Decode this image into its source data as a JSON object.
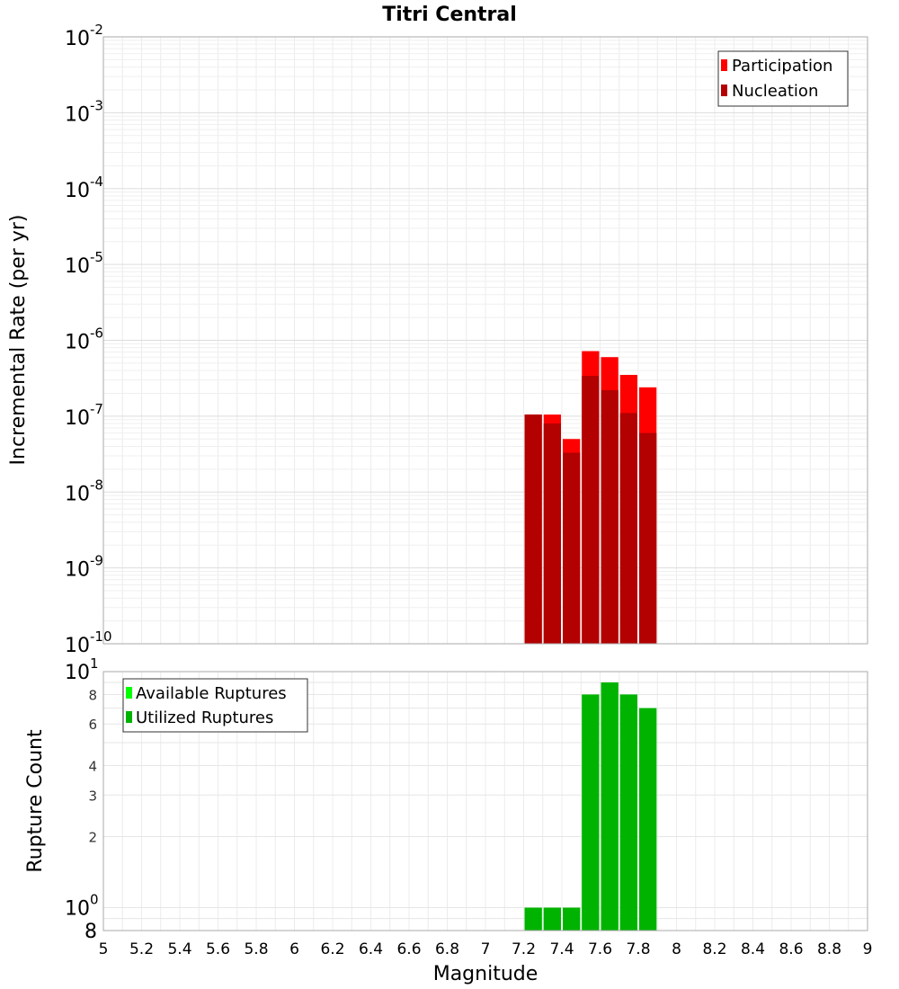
{
  "chart_data": [
    {
      "type": "bar",
      "title": "Titri Central",
      "xlabel": "",
      "ylabel": "Incremental Rate (per yr)",
      "yscale": "log",
      "ylim": [
        1e-10,
        0.01
      ],
      "xlim": [
        5,
        9
      ],
      "bin_width": 0.1,
      "x": [
        7.25,
        7.35,
        7.45,
        7.55,
        7.65,
        7.75,
        7.85
      ],
      "series": [
        {
          "name": "Participation",
          "color": "#ff0000",
          "values": [
            1.05e-07,
            1.05e-07,
            5e-08,
            7.2e-07,
            6e-07,
            3.5e-07,
            2.4e-07
          ]
        },
        {
          "name": "Nucleation",
          "color": "#b30000",
          "values": [
            1.05e-07,
            8e-08,
            3.3e-08,
            3.4e-07,
            2.2e-07,
            1.1e-07,
            6e-08
          ]
        }
      ],
      "legend": "top-right",
      "grid": true
    },
    {
      "type": "bar",
      "title": "",
      "xlabel": "Magnitude",
      "ylabel": "Rupture Count",
      "yscale": "log",
      "ylim": [
        0.8,
        10
      ],
      "xlim": [
        5,
        9
      ],
      "bin_width": 0.1,
      "x": [
        7.25,
        7.35,
        7.45,
        7.55,
        7.65,
        7.75,
        7.85
      ],
      "series": [
        {
          "name": "Available Ruptures",
          "color": "#00ff00",
          "values": [
            1,
            1,
            1,
            8,
            9,
            8,
            7
          ]
        },
        {
          "name": "Utilized Ruptures",
          "color": "#00b300",
          "values": [
            1,
            1,
            1,
            8,
            9,
            8,
            7
          ]
        }
      ],
      "legend": "top-left",
      "grid": true
    }
  ],
  "x_ticks": [
    "5",
    "5.2",
    "5.4",
    "5.6",
    "5.8",
    "6",
    "6.2",
    "6.4",
    "6.6",
    "6.8",
    "7",
    "7.2",
    "7.4",
    "7.6",
    "7.8",
    "8",
    "8.2",
    "8.4",
    "8.6",
    "8.8",
    "9"
  ],
  "top_y_ticks": [
    {
      "base": "10",
      "exp": "-2"
    },
    {
      "base": "10",
      "exp": "-3"
    },
    {
      "base": "10",
      "exp": "-4"
    },
    {
      "base": "10",
      "exp": "-5"
    },
    {
      "base": "10",
      "exp": "-6"
    },
    {
      "base": "10",
      "exp": "-7"
    },
    {
      "base": "10",
      "exp": "-8"
    },
    {
      "base": "10",
      "exp": "-9"
    },
    {
      "base": "10",
      "exp": "-10"
    }
  ],
  "bottom_y_ticks": {
    "major": [
      {
        "base": "10",
        "exp": "1"
      },
      {
        "base": "10",
        "exp": "0"
      }
    ],
    "minor": [
      "8",
      "6",
      "4",
      "3",
      "2"
    ],
    "bottom_label": "8"
  }
}
